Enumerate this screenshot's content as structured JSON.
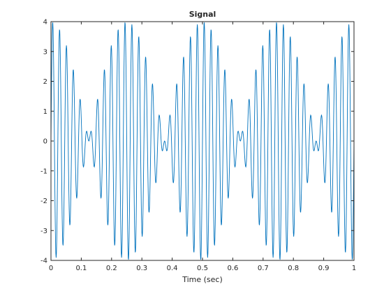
{
  "chart_data": {
    "type": "line",
    "title": "Signal",
    "xlabel": "Time (sec)",
    "ylabel": "",
    "xlim": [
      0,
      1
    ],
    "ylim": [
      -4,
      4
    ],
    "xticks": [
      "0",
      "0.1",
      "0.2",
      "0.3",
      "0.4",
      "0.5",
      "0.6",
      "0.7",
      "0.8",
      "0.9",
      "1"
    ],
    "yticks": [
      "-4",
      "-3",
      "-2",
      "-1",
      "0",
      "1",
      "2",
      "3",
      "4"
    ],
    "grid": false,
    "series": [
      {
        "color": "#0072BD",
        "formula": "sin(2*pi*2*t) * ... ",
        "components": [
          {
            "amplitude": 2,
            "frequency": 42
          },
          {
            "amplitude": 2,
            "frequency": 46
          }
        ],
        "t_start": 0,
        "t_end": 1,
        "sample_rate": 1000
      }
    ]
  },
  "colors": {
    "axes": "#262626",
    "line": "#0072BD",
    "background": "#ffffff"
  }
}
